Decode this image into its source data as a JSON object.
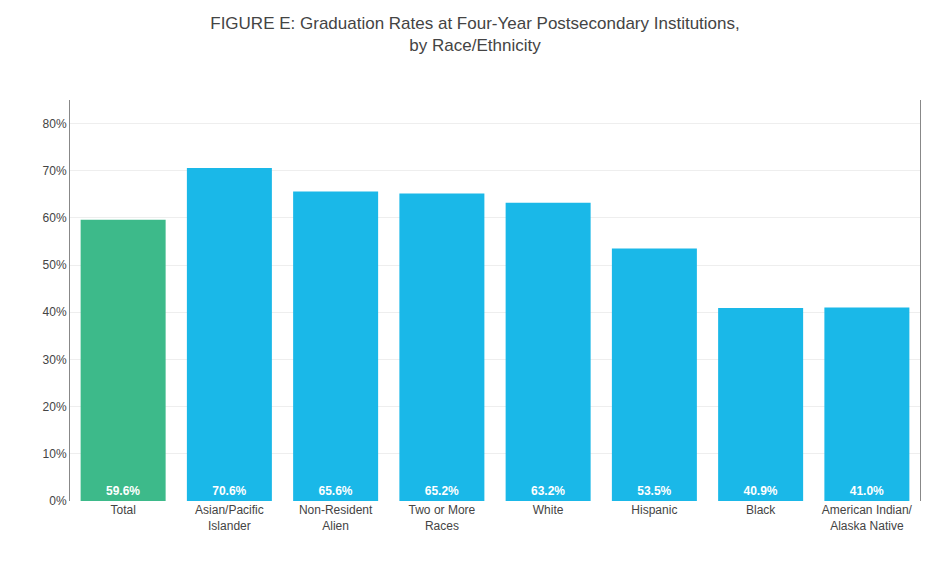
{
  "chart_data": {
    "type": "bar",
    "title": "FIGURE E: Graduation Rates at Four-Year Postsecondary Institutions,\nby Race/Ethnicity",
    "categories": [
      "Total",
      "Asian/Pacific\nIslander",
      "Non-Resident\nAlien",
      "Two or More\nRaces",
      "White",
      "Hispanic",
      "Black",
      "American Indian/\nAlaska Native"
    ],
    "values": [
      59.6,
      70.6,
      65.6,
      65.2,
      63.2,
      53.5,
      40.9,
      41.0
    ],
    "value_labels": [
      "59.6%",
      "70.6%",
      "65.6%",
      "65.2%",
      "63.2%",
      "53.5%",
      "40.9%",
      "41.0%"
    ],
    "data_labels": true,
    "colors": [
      "#3dba8a",
      "#1ab8e8",
      "#1ab8e8",
      "#1ab8e8",
      "#1ab8e8",
      "#1ab8e8",
      "#1ab8e8",
      "#1ab8e8"
    ],
    "ylim": [
      0,
      85
    ],
    "yticks": [
      {
        "value": 0,
        "label": "0%"
      },
      {
        "value": 10,
        "label": "10%"
      },
      {
        "value": 20,
        "label": "20%"
      },
      {
        "value": 30,
        "label": "30%"
      },
      {
        "value": 40,
        "label": "40%"
      },
      {
        "value": 50,
        "label": "50%"
      },
      {
        "value": 60,
        "label": "60%"
      },
      {
        "value": 70,
        "label": "70%"
      },
      {
        "value": 80,
        "label": "80%"
      }
    ],
    "grid": true
  }
}
